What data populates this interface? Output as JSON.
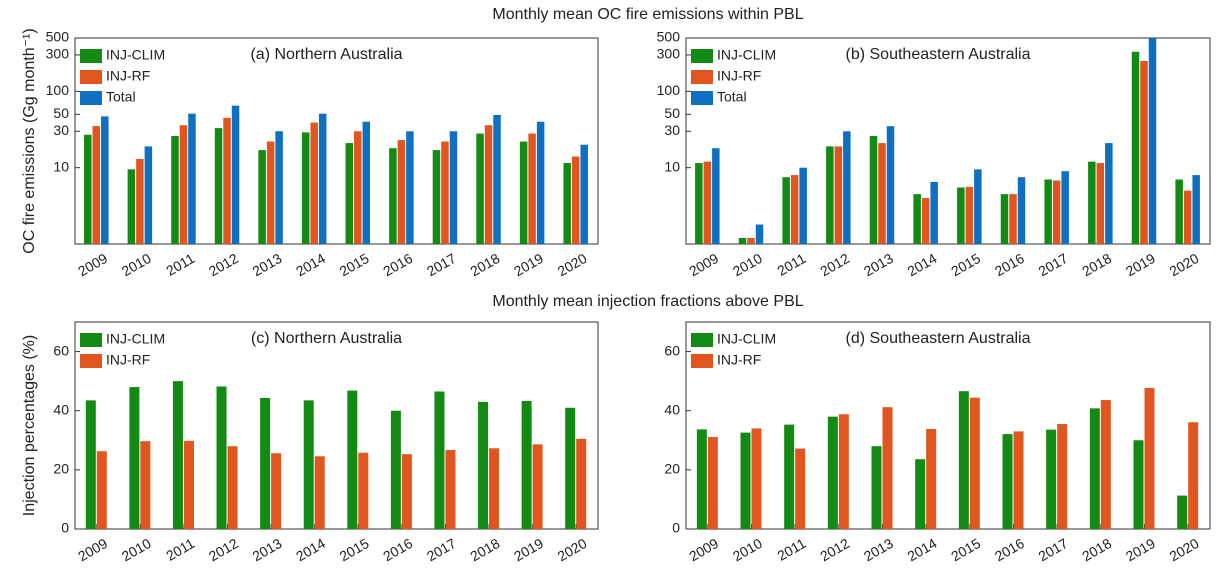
{
  "chart_data": [
    {
      "type": "bar",
      "suptitle": "Monthly mean OC fire emissions within PBL",
      "title": "(a) Northern Australia",
      "y_label": "OC fire emissions (Gg month⁻¹)",
      "log_scale": true,
      "categories": [
        "2009",
        "2010",
        "2011",
        "2012",
        "2013",
        "2014",
        "2015",
        "2016",
        "2017",
        "2018",
        "2019",
        "2020"
      ],
      "series": [
        {
          "name": "INJ-CLIM",
          "color": "#138a13",
          "values": [
            27,
            9.5,
            26,
            33,
            17,
            29,
            21,
            18,
            17,
            28,
            22,
            11.5
          ]
        },
        {
          "name": "INJ-RF",
          "color": "#e0561e",
          "values": [
            35,
            13,
            36,
            45,
            22,
            39,
            30,
            23,
            22,
            36,
            28,
            14
          ]
        },
        {
          "name": "Total",
          "color": "#0f70c2",
          "values": [
            47,
            19,
            51,
            65,
            30,
            51,
            40,
            30,
            30,
            49,
            40,
            20
          ]
        }
      ],
      "ylim": [
        1,
        500
      ],
      "yticks": [
        10,
        30,
        50,
        100,
        300,
        500
      ]
    },
    {
      "type": "bar",
      "title": "(b) Southeastern Australia",
      "log_scale": true,
      "categories": [
        "2009",
        "2010",
        "2011",
        "2012",
        "2013",
        "2014",
        "2015",
        "2016",
        "2017",
        "2018",
        "2019",
        "2020"
      ],
      "series": [
        {
          "name": "INJ-CLIM",
          "color": "#138a13",
          "values": [
            11.5,
            1.2,
            7.5,
            19,
            26,
            4.5,
            5.5,
            4.5,
            7,
            12,
            330,
            7
          ]
        },
        {
          "name": "INJ-RF",
          "color": "#e0561e",
          "values": [
            12,
            1.2,
            8,
            19,
            21,
            4,
            5.6,
            4.5,
            6.8,
            11.5,
            250,
            5
          ]
        },
        {
          "name": "Total",
          "color": "#0f70c2",
          "values": [
            18,
            1.8,
            10,
            30,
            35,
            6.5,
            9.5,
            7.5,
            9,
            21,
            500,
            8
          ]
        }
      ],
      "ylim": [
        1,
        500
      ],
      "yticks": [
        10,
        30,
        50,
        100,
        300,
        500
      ]
    },
    {
      "type": "bar",
      "suptitle": "Monthly mean injection fractions above PBL",
      "title": "(c) Northern Australia",
      "y_label": "Injection percentages (%)",
      "log_scale": false,
      "categories": [
        "2009",
        "2010",
        "2011",
        "2012",
        "2013",
        "2014",
        "2015",
        "2016",
        "2017",
        "2018",
        "2019",
        "2020"
      ],
      "series": [
        {
          "name": "INJ-CLIM",
          "color": "#138a13",
          "values": [
            43.5,
            48,
            50,
            48.2,
            44.3,
            43.5,
            46.8,
            40,
            46.5,
            43,
            43.3,
            41
          ]
        },
        {
          "name": "INJ-RF",
          "color": "#e0561e",
          "values": [
            26.3,
            29.7,
            29.8,
            28,
            25.6,
            24.6,
            25.8,
            25.3,
            26.7,
            27.3,
            28.6,
            30.5
          ]
        }
      ],
      "ylim": [
        0,
        70
      ],
      "yticks": [
        0,
        20,
        40,
        60
      ]
    },
    {
      "type": "bar",
      "title": "(d) Southeastern Australia",
      "log_scale": false,
      "categories": [
        "2009",
        "2010",
        "2011",
        "2012",
        "2013",
        "2014",
        "2015",
        "2016",
        "2017",
        "2018",
        "2019",
        "2020"
      ],
      "series": [
        {
          "name": "INJ-CLIM",
          "color": "#138a13",
          "values": [
            33.7,
            32.6,
            35.3,
            38,
            28,
            23.6,
            46.6,
            32.1,
            33.6,
            40.8,
            30,
            11.3
          ]
        },
        {
          "name": "INJ-RF",
          "color": "#e0561e",
          "values": [
            31.1,
            34,
            27.2,
            38.8,
            41.2,
            33.8,
            44.4,
            33,
            35.5,
            43.6,
            47.7,
            36.1
          ]
        }
      ],
      "ylim": [
        0,
        70
      ],
      "yticks": [
        0,
        20,
        40,
        60
      ]
    }
  ]
}
